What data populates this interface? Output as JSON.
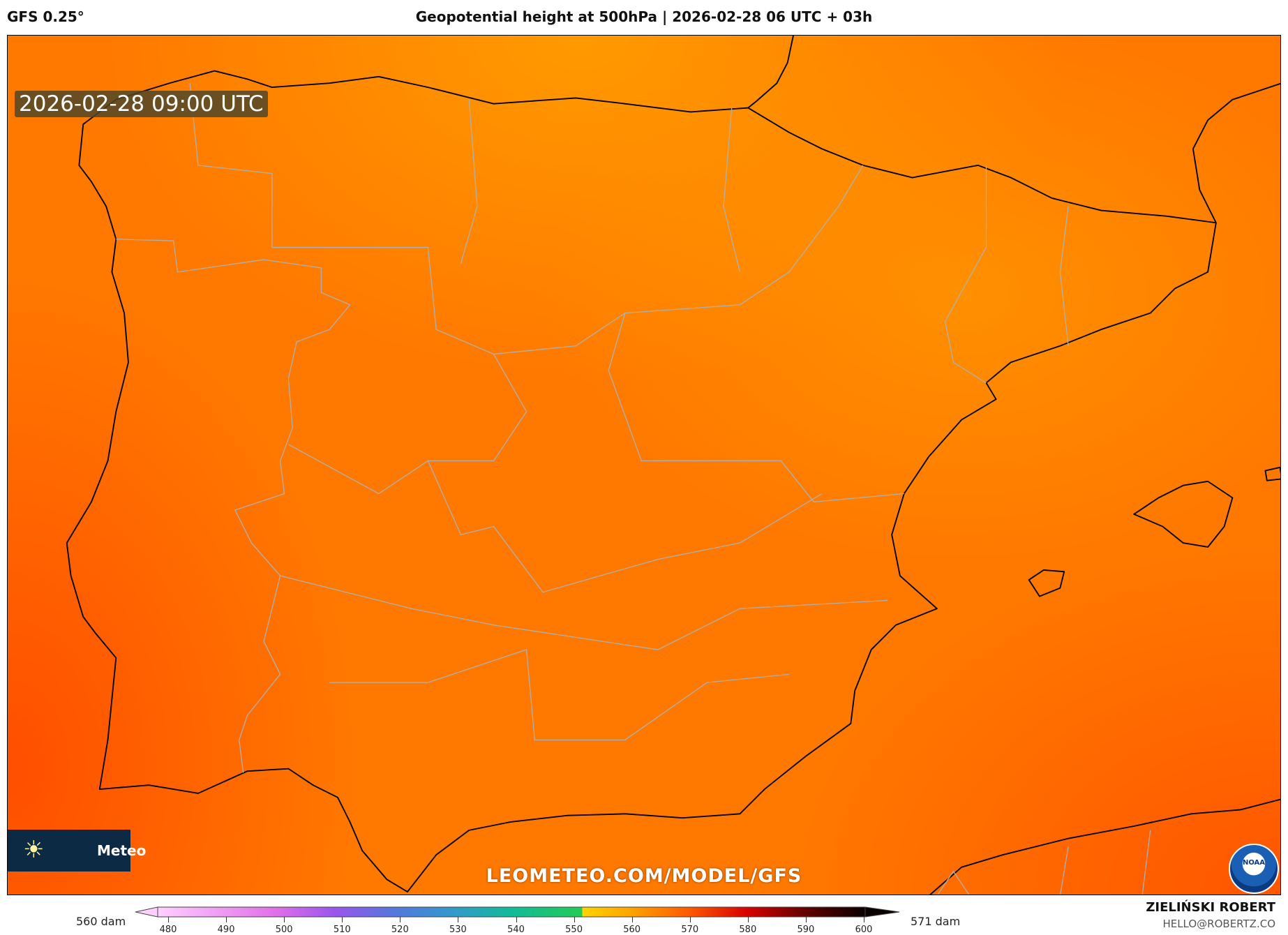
{
  "header": {
    "model": "GFS 0.25°",
    "title": "Geopotential height at 500hPa | 2026-02-28 06 UTC + 03h"
  },
  "map": {
    "timestamp": "2026-02-28 09:00 UTC",
    "watermark": "LEOMETEO.COM/MODEL/GFS",
    "logo_text": "Meteo",
    "logo_icon": "sun-icon",
    "noaa_text": "NOAA"
  },
  "colorbar": {
    "min_label": "560 dam",
    "max_label": "571 dam",
    "ticks": [
      "480",
      "490",
      "500",
      "510",
      "520",
      "530",
      "540",
      "550",
      "560",
      "570",
      "580",
      "590",
      "600"
    ],
    "range": [
      480,
      600
    ],
    "stops": [
      [
        480,
        "#ffd0ff"
      ],
      [
        500,
        "#e070e8"
      ],
      [
        510,
        "#9a55ee"
      ],
      [
        520,
        "#5577dd"
      ],
      [
        530,
        "#3399cc"
      ],
      [
        540,
        "#11bb99"
      ],
      [
        552,
        "#22cc55"
      ],
      [
        552,
        "#ffd400"
      ],
      [
        560,
        "#ffa500"
      ],
      [
        570,
        "#ff5a00"
      ],
      [
        580,
        "#d80000"
      ],
      [
        590,
        "#600000"
      ],
      [
        600,
        "#0a0000"
      ]
    ]
  },
  "credit": {
    "name": "ZIELIŃSKI ROBERT",
    "email": "HELLO@ROBERTZ.CO"
  }
}
